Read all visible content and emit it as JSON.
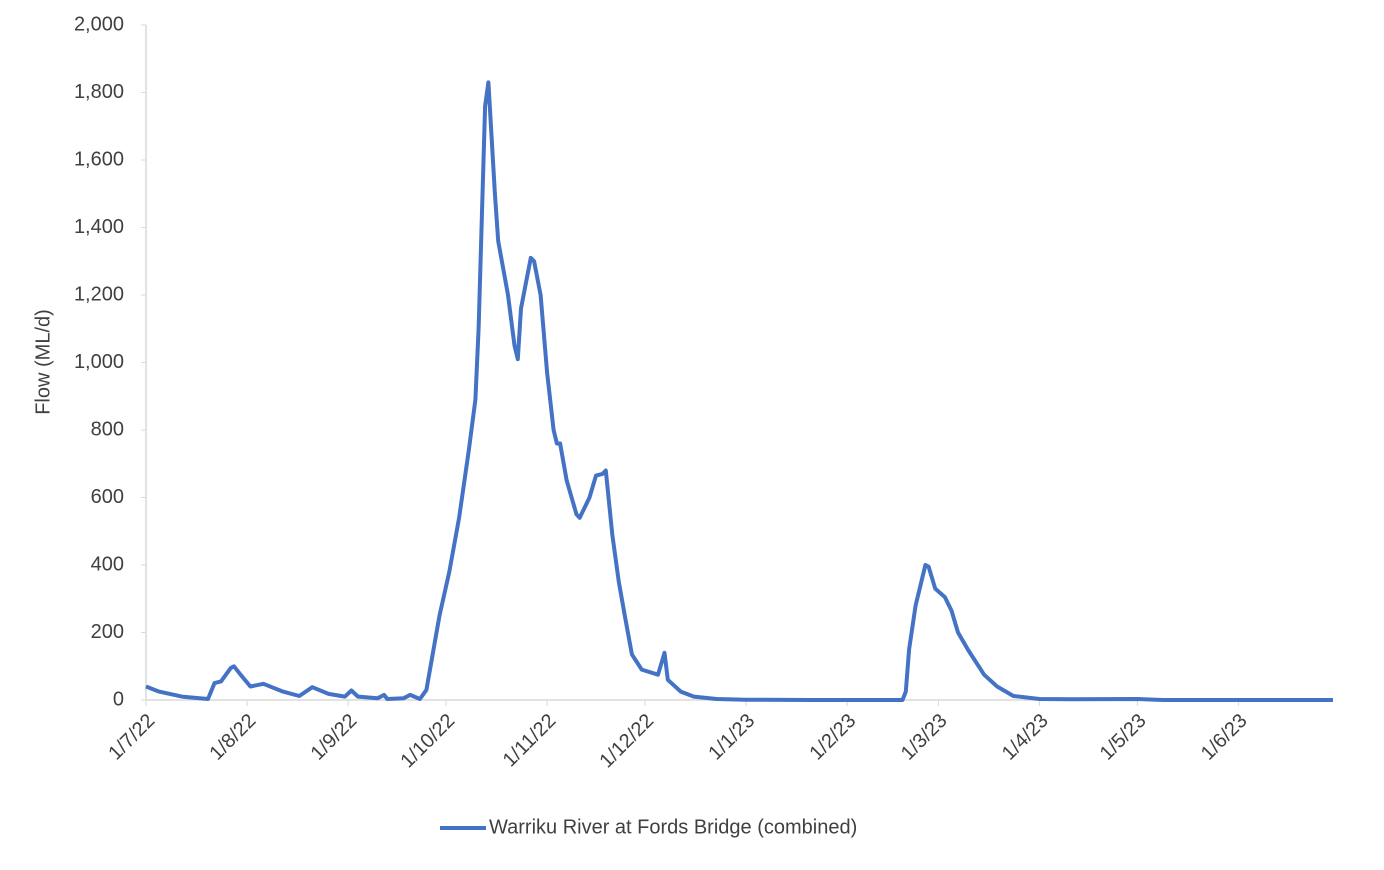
{
  "chart_data": {
    "type": "line",
    "y_label": "Flow (ML/d)",
    "x": [
      "2022-07-01",
      "2022-07-05",
      "2022-07-12",
      "2022-07-20",
      "2022-07-22",
      "2022-07-24",
      "2022-07-27",
      "2022-07-28",
      "2022-07-30",
      "2022-08-02",
      "2022-08-06",
      "2022-08-12",
      "2022-08-17",
      "2022-08-21",
      "2022-08-26",
      "2022-08-31",
      "2022-09-02",
      "2022-09-04",
      "2022-09-10",
      "2022-09-12",
      "2022-09-13",
      "2022-09-18",
      "2022-09-20",
      "2022-09-23",
      "2022-09-25",
      "2022-09-29",
      "2022-10-02",
      "2022-10-05",
      "2022-10-08",
      "2022-10-10",
      "2022-10-11",
      "2022-10-13",
      "2022-10-14",
      "2022-10-16",
      "2022-10-17",
      "2022-10-20",
      "2022-10-22",
      "2022-10-23",
      "2022-10-24",
      "2022-10-26",
      "2022-10-27",
      "2022-10-28",
      "2022-10-30",
      "2022-11-01",
      "2022-11-03",
      "2022-11-04",
      "2022-11-05",
      "2022-11-07",
      "2022-11-10",
      "2022-11-11",
      "2022-11-14",
      "2022-11-16",
      "2022-11-18",
      "2022-11-19",
      "2022-11-21",
      "2022-11-23",
      "2022-11-25",
      "2022-11-27",
      "2022-11-30",
      "2022-12-05",
      "2022-12-07",
      "2022-12-08",
      "2022-12-12",
      "2022-12-16",
      "2022-12-23",
      "2023-01-01",
      "2023-01-21",
      "2023-02-18",
      "2023-02-19",
      "2023-02-20",
      "2023-02-22",
      "2023-02-25",
      "2023-02-26",
      "2023-02-28",
      "2023-03-03",
      "2023-03-05",
      "2023-03-07",
      "2023-03-10",
      "2023-03-12",
      "2023-03-15",
      "2023-03-19",
      "2023-03-24",
      "2023-04-01",
      "2023-04-11",
      "2023-05-01",
      "2023-05-09",
      "2023-06-30"
    ],
    "series": [
      {
        "name": "Warriku River at Fords Bridge (combined)",
        "color": "#4472c4",
        "values": [
          40,
          25,
          10,
          3,
          50,
          55,
          95,
          100,
          75,
          40,
          48,
          25,
          12,
          38,
          18,
          10,
          28,
          10,
          5,
          15,
          3,
          5,
          15,
          3,
          30,
          250,
          380,
          540,
          740,
          890,
          1100,
          1760,
          1830,
          1500,
          1360,
          1200,
          1050,
          1010,
          1160,
          1260,
          1310,
          1300,
          1200,
          970,
          800,
          760,
          760,
          650,
          550,
          540,
          600,
          665,
          670,
          680,
          490,
          350,
          240,
          135,
          90,
          75,
          140,
          60,
          25,
          10,
          3,
          1,
          0,
          0,
          25,
          150,
          280,
          400,
          395,
          330,
          305,
          265,
          200,
          150,
          120,
          75,
          40,
          12,
          3,
          2,
          3,
          0,
          0
        ]
      }
    ],
    "xlim": [
      "2022-07-01",
      "2023-06-30"
    ],
    "xticks": [
      {
        "value": "2022-07-01",
        "label": "1/7/22"
      },
      {
        "value": "2022-08-01",
        "label": "1/8/22"
      },
      {
        "value": "2022-09-01",
        "label": "1/9/22"
      },
      {
        "value": "2022-10-01",
        "label": "1/10/22"
      },
      {
        "value": "2022-11-01",
        "label": "1/11/22"
      },
      {
        "value": "2022-12-01",
        "label": "1/12/22"
      },
      {
        "value": "2023-01-01",
        "label": "1/1/23"
      },
      {
        "value": "2023-02-01",
        "label": "1/2/23"
      },
      {
        "value": "2023-03-01",
        "label": "1/3/23"
      },
      {
        "value": "2023-04-01",
        "label": "1/4/23"
      },
      {
        "value": "2023-05-01",
        "label": "1/5/23"
      },
      {
        "value": "2023-06-01",
        "label": "1/6/23"
      }
    ],
    "ylim": [
      0,
      2000
    ],
    "yticks": [
      0,
      200,
      400,
      600,
      800,
      {
        "value": 1000,
        "label": "1,000"
      },
      {
        "value": 1200,
        "label": "1,200"
      },
      {
        "value": 1400,
        "label": "1,400"
      },
      {
        "value": 1600,
        "label": "1,600"
      },
      {
        "value": 1800,
        "label": "1,800"
      },
      {
        "value": 2000,
        "label": "2,000"
      }
    ],
    "grid": false,
    "legend": "bottom"
  }
}
